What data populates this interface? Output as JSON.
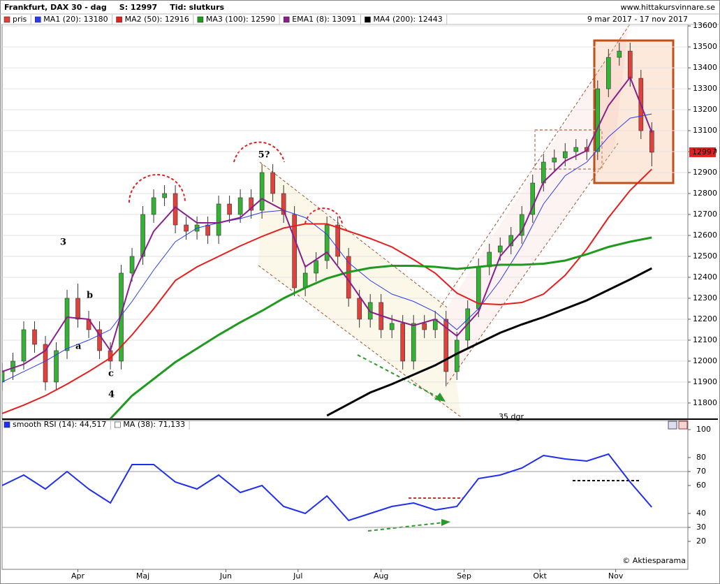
{
  "chart_data": [
    {
      "type": "candlestick",
      "title": "Frankfurt, DAX 30 - dag",
      "header_items": [
        "S: 12997",
        "Tid: slutkurs"
      ],
      "source": "www.hittakursvinnare.se",
      "date_range": "9 mar 2017 - 17 nov 2017",
      "annotations": [
        "3",
        "b",
        "a",
        "c",
        "4",
        "5?",
        "35 dgr"
      ],
      "xlim": [
        0,
        190
      ],
      "ylim": [
        11723,
        13607
      ],
      "yticks": [
        11800,
        11900,
        12000,
        12100,
        12200,
        12300,
        12400,
        12500,
        12600,
        12700,
        12800,
        12900,
        13000,
        13100,
        13200,
        13300,
        13400,
        13500,
        13600
      ],
      "grid": true,
      "candles": {
        "name": "pris",
        "color": "#e0413a",
        "up_color": "#33b233",
        "down_color": "#e0413a",
        "x": [
          0,
          3,
          6,
          9,
          12,
          15,
          18,
          21,
          24,
          27,
          30,
          33,
          36,
          39,
          42,
          45,
          48,
          51,
          54,
          57,
          60,
          63,
          66,
          69,
          72,
          75,
          78,
          81,
          84,
          87,
          90,
          93,
          96,
          99,
          102,
          105,
          108,
          111,
          114,
          117,
          120,
          123,
          126,
          129,
          132,
          135,
          138,
          141,
          144,
          147,
          150,
          153,
          156,
          159,
          162,
          165,
          168,
          171,
          174,
          177,
          180
        ],
        "open": [
          11900,
          11950,
          12000,
          12150,
          12080,
          11900,
          12050,
          12300,
          12200,
          12150,
          12050,
          12000,
          12420,
          12500,
          12700,
          12780,
          12800,
          12650,
          12620,
          12650,
          12600,
          12750,
          12700,
          12780,
          12720,
          12900,
          12800,
          12700,
          12350,
          12420,
          12480,
          12650,
          12500,
          12300,
          12200,
          12280,
          12150,
          12180,
          12000,
          12180,
          12150,
          12200,
          11950,
          12100,
          12250,
          12450,
          12520,
          12550,
          12600,
          12700,
          12850,
          12950,
          12970,
          13000,
          13020,
          13000,
          13300,
          13450,
          13480,
          13350,
          13100
        ],
        "high": [
          11990,
          12040,
          12190,
          12190,
          12120,
          12090,
          12340,
          12370,
          12240,
          12190,
          12090,
          12460,
          12540,
          12740,
          12820,
          12840,
          12840,
          12690,
          12690,
          12690,
          12790,
          12790,
          12820,
          12820,
          12940,
          12940,
          12840,
          12740,
          12460,
          12520,
          12690,
          12690,
          12540,
          12340,
          12320,
          12320,
          12220,
          12220,
          12220,
          12220,
          12240,
          12240,
          12140,
          12290,
          12490,
          12560,
          12590,
          12640,
          12740,
          12890,
          12990,
          13010,
          13040,
          13060,
          13060,
          13340,
          13490,
          13520,
          13520,
          13390,
          13140
        ],
        "low": [
          11860,
          11910,
          11960,
          12040,
          11860,
          11860,
          12010,
          12160,
          12110,
          12010,
          11960,
          11960,
          12380,
          12460,
          12660,
          12740,
          12610,
          12580,
          12580,
          12560,
          12560,
          12660,
          12660,
          12680,
          12680,
          12760,
          12660,
          12310,
          12310,
          12380,
          12440,
          12460,
          12260,
          12160,
          12160,
          12110,
          12110,
          11960,
          11960,
          12110,
          12110,
          11880,
          11910,
          12060,
          12210,
          12410,
          12480,
          12510,
          12560,
          12660,
          12810,
          12910,
          12930,
          12960,
          12960,
          12960,
          13260,
          13410,
          13310,
          13060,
          12930
        ],
        "close": [
          11950,
          12000,
          12150,
          12080,
          11900,
          12050,
          12300,
          12200,
          12150,
          12050,
          12000,
          12420,
          12500,
          12700,
          12780,
          12800,
          12650,
          12620,
          12650,
          12600,
          12750,
          12700,
          12780,
          12720,
          12900,
          12800,
          12700,
          12350,
          12420,
          12480,
          12650,
          12500,
          12300,
          12200,
          12280,
          12150,
          12180,
          12000,
          12180,
          12150,
          12200,
          11950,
          12100,
          12250,
          12450,
          12520,
          12550,
          12600,
          12700,
          12850,
          12950,
          12970,
          13000,
          13020,
          13000,
          13300,
          13450,
          13480,
          13350,
          13100,
          12997
        ]
      },
      "x": [
        0,
        6,
        12,
        18,
        24,
        30,
        36,
        42,
        48,
        54,
        60,
        66,
        72,
        78,
        84,
        90,
        96,
        102,
        108,
        114,
        120,
        126,
        132,
        138,
        144,
        150,
        156,
        162,
        168,
        174,
        180
      ],
      "series": [
        {
          "name": "MA1 (20): 13180",
          "color": "#2b3cf0",
          "width": 1,
          "values": [
            11900,
            11950,
            12000,
            12060,
            12100,
            12150,
            12285,
            12435,
            12570,
            12635,
            12660,
            12680,
            12710,
            12720,
            12685,
            12605,
            12470,
            12385,
            12320,
            12285,
            12235,
            12150,
            12250,
            12385,
            12550,
            12750,
            12885,
            12950,
            13070,
            13160,
            13180
          ]
        },
        {
          "name": "MA2 (50): 12916",
          "color": "#e61e1e",
          "width": 2,
          "values": [
            11750,
            11790,
            11835,
            11890,
            11950,
            12015,
            12125,
            12250,
            12385,
            12450,
            12500,
            12550,
            12595,
            12635,
            12655,
            12655,
            12620,
            12585,
            12545,
            12485,
            12420,
            12325,
            12275,
            12270,
            12280,
            12320,
            12410,
            12535,
            12685,
            12815,
            12916
          ]
        },
        {
          "name": "MA3 (100): 12590",
          "color": "#1f9a1f",
          "width": 3,
          "values": [
            null,
            null,
            null,
            null,
            null,
            11725,
            11835,
            11915,
            11995,
            12060,
            12125,
            12185,
            12240,
            12300,
            12350,
            12395,
            12425,
            12445,
            12455,
            12455,
            12450,
            12440,
            12450,
            12460,
            12460,
            12465,
            12480,
            12510,
            12545,
            12570,
            12590
          ]
        },
        {
          "name": "EMA1 (8): 13091",
          "color": "#8a1e8a",
          "width": 2,
          "values": [
            11950,
            11985,
            12050,
            12210,
            12200,
            12050,
            12400,
            12620,
            12735,
            12660,
            12660,
            12685,
            12775,
            12720,
            12450,
            12520,
            12385,
            12235,
            12200,
            12170,
            12200,
            12120,
            12235,
            12500,
            12620,
            12855,
            12955,
            13005,
            13220,
            13355,
            13091
          ]
        },
        {
          "name": "MA4 (200): 12443",
          "color": "#000000",
          "width": 3,
          "values": [
            null,
            null,
            null,
            null,
            null,
            null,
            null,
            null,
            null,
            null,
            null,
            null,
            null,
            null,
            null,
            11740,
            11795,
            11850,
            11890,
            11935,
            11980,
            12035,
            12085,
            12135,
            12175,
            12210,
            12250,
            12290,
            12340,
            12390,
            12443
          ]
        }
      ]
    },
    {
      "type": "line",
      "credit": "© Aktiesparama",
      "legend": [
        "MA (38): 71,133"
      ],
      "xlim": [
        0,
        190
      ],
      "xticks": [
        {
          "value": 21,
          "label": "Apr"
        },
        {
          "value": 39,
          "label": "Maj"
        },
        {
          "value": 62,
          "label": "Jun"
        },
        {
          "value": 82,
          "label": "Jul"
        },
        {
          "value": 105,
          "label": "Aug"
        },
        {
          "value": 128,
          "label": "Sep"
        },
        {
          "value": 149,
          "label": "Okt"
        },
        {
          "value": 170,
          "label": "Nov"
        }
      ],
      "ylim": [
        0,
        106
      ],
      "yticks": [
        20,
        30,
        40,
        60,
        70,
        80,
        100
      ],
      "reference_lines": [
        70,
        30
      ],
      "x": [
        0,
        6,
        12,
        18,
        24,
        30,
        36,
        42,
        48,
        54,
        60,
        66,
        72,
        78,
        84,
        90,
        96,
        102,
        108,
        114,
        120,
        126,
        132,
        138,
        144,
        150,
        156,
        162,
        168,
        174,
        180
      ],
      "series": [
        {
          "name": "smooth RSI (14): 44,517",
          "color": "#1f2ff0",
          "values": [
            60,
            67.5,
            57.5,
            70,
            57.5,
            47.5,
            75,
            75,
            62.5,
            57.5,
            67.5,
            55,
            60,
            45,
            40,
            52.5,
            35,
            40,
            45,
            47.5,
            42.5,
            45,
            65,
            67.5,
            72.5,
            81.5,
            79,
            77.5,
            82.5,
            62.5,
            44.517
          ]
        }
      ]
    }
  ]
}
